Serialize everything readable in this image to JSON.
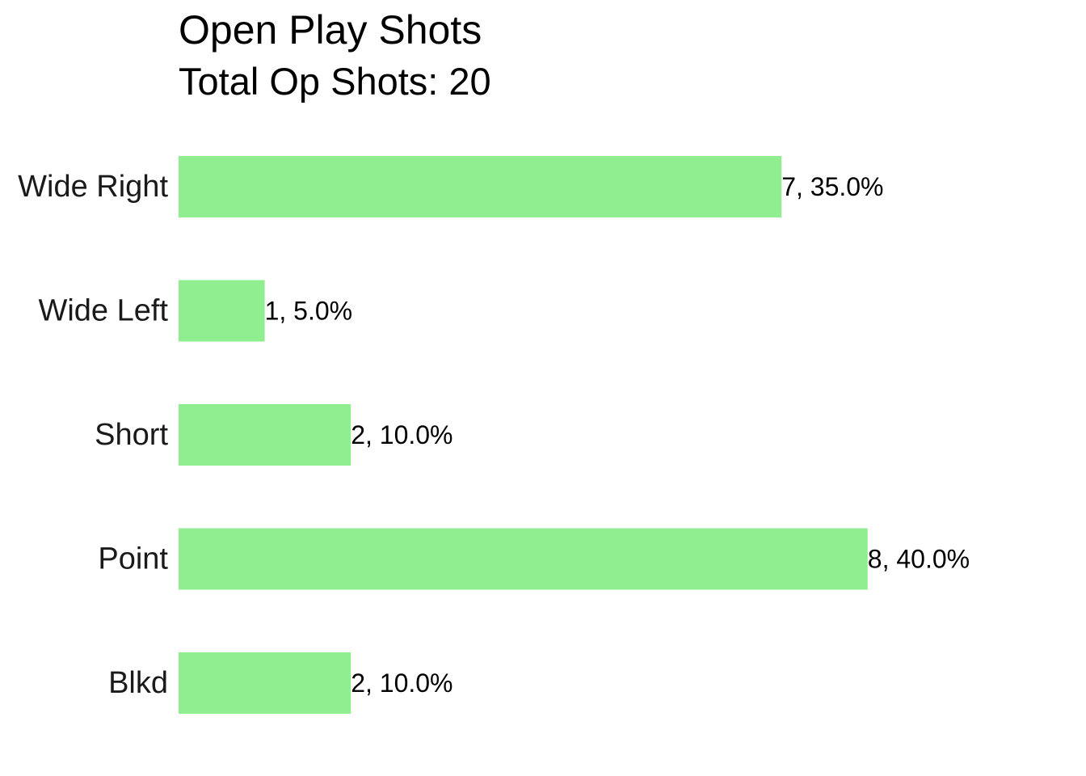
{
  "chart_data": {
    "type": "bar",
    "orientation": "horizontal",
    "title": "Open Play Shots",
    "subtitle": "Total Op Shots: 20",
    "categories": [
      "Wide Right",
      "Wide Left",
      "Short",
      "Point",
      "Blkd"
    ],
    "values": [
      7,
      1,
      2,
      8,
      2
    ],
    "data_labels": [
      "7, 35.0%",
      "1, 5.0%",
      "2, 10.0%",
      "8, 40.0%",
      "2, 10.0%"
    ],
    "xlim": [
      0,
      10
    ],
    "grid": false,
    "legend": "none",
    "bar_color": "#90EE90"
  }
}
